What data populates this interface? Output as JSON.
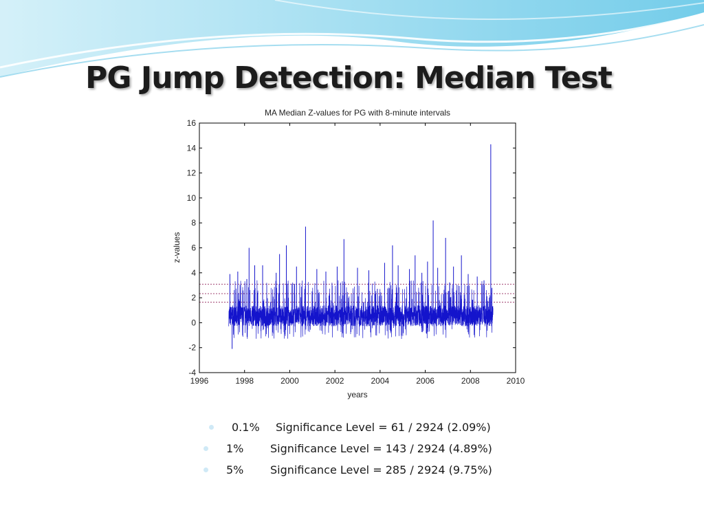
{
  "slide": {
    "title": "PG Jump Detection: Median Test",
    "bullets": [
      {
        "pct": "0.1%",
        "text": "Significance Level = 61 / 2924 (2.09%)"
      },
      {
        "pct": "1%",
        "text": "Significance Level = 143 / 2924 (4.89%)"
      },
      {
        "pct": "5%",
        "text": "Significance Level = 285 / 2924 (9.75%)"
      }
    ]
  },
  "colors": {
    "series": "#1414cc",
    "threshold": "#a04070",
    "banner_light": "#cdeef8",
    "banner_dark": "#5cc4e6"
  },
  "chart_data": {
    "type": "line",
    "title": "MA Median Z-values for PG with 8-minute intervals",
    "xlabel": "years",
    "ylabel": "z-values",
    "xlim": [
      1996,
      2010
    ],
    "ylim": [
      -4,
      16
    ],
    "xticks": [
      "1996",
      "1998",
      "2000",
      "2002",
      "2004",
      "2006",
      "2008",
      "2010"
    ],
    "yticks": [
      "-4",
      "-2",
      "0",
      "2",
      "4",
      "6",
      "8",
      "10",
      "12",
      "14",
      "16"
    ],
    "x_range": [
      1997.3,
      2009.0
    ],
    "baseline_band": [
      -0.5,
      1.6
    ],
    "thresholds": [
      1.645,
      2.326,
      3.09
    ],
    "spikes": [
      {
        "x": 1997.35,
        "y": 3.9
      },
      {
        "x": 1997.45,
        "y": -2.1
      },
      {
        "x": 1997.7,
        "y": 4.1
      },
      {
        "x": 1998.1,
        "y": 3.5
      },
      {
        "x": 1998.2,
        "y": 6.0
      },
      {
        "x": 1998.45,
        "y": 4.6
      },
      {
        "x": 1998.8,
        "y": 4.6
      },
      {
        "x": 1999.4,
        "y": 4.0
      },
      {
        "x": 1999.55,
        "y": 5.5
      },
      {
        "x": 1999.85,
        "y": 6.2
      },
      {
        "x": 2000.3,
        "y": 4.5
      },
      {
        "x": 2000.7,
        "y": 7.7
      },
      {
        "x": 2001.2,
        "y": 4.3
      },
      {
        "x": 2001.6,
        "y": 4.1
      },
      {
        "x": 2002.1,
        "y": 4.5
      },
      {
        "x": 2002.4,
        "y": 6.7
      },
      {
        "x": 2003.0,
        "y": 4.4
      },
      {
        "x": 2003.5,
        "y": 4.2
      },
      {
        "x": 2004.2,
        "y": 4.8
      },
      {
        "x": 2004.55,
        "y": 6.2
      },
      {
        "x": 2004.8,
        "y": 4.6
      },
      {
        "x": 2005.3,
        "y": 4.3
      },
      {
        "x": 2005.55,
        "y": 5.4
      },
      {
        "x": 2005.85,
        "y": 4.0
      },
      {
        "x": 2006.1,
        "y": 4.9
      },
      {
        "x": 2006.35,
        "y": 8.2
      },
      {
        "x": 2006.55,
        "y": 4.4
      },
      {
        "x": 2006.9,
        "y": 6.8
      },
      {
        "x": 2007.25,
        "y": 4.5
      },
      {
        "x": 2007.6,
        "y": 5.4
      },
      {
        "x": 2007.9,
        "y": 3.9
      },
      {
        "x": 2008.3,
        "y": 3.7
      },
      {
        "x": 2008.6,
        "y": 3.4
      },
      {
        "x": 2008.9,
        "y": 14.3
      },
      {
        "x": 2008.95,
        "y": 2.8
      }
    ]
  }
}
